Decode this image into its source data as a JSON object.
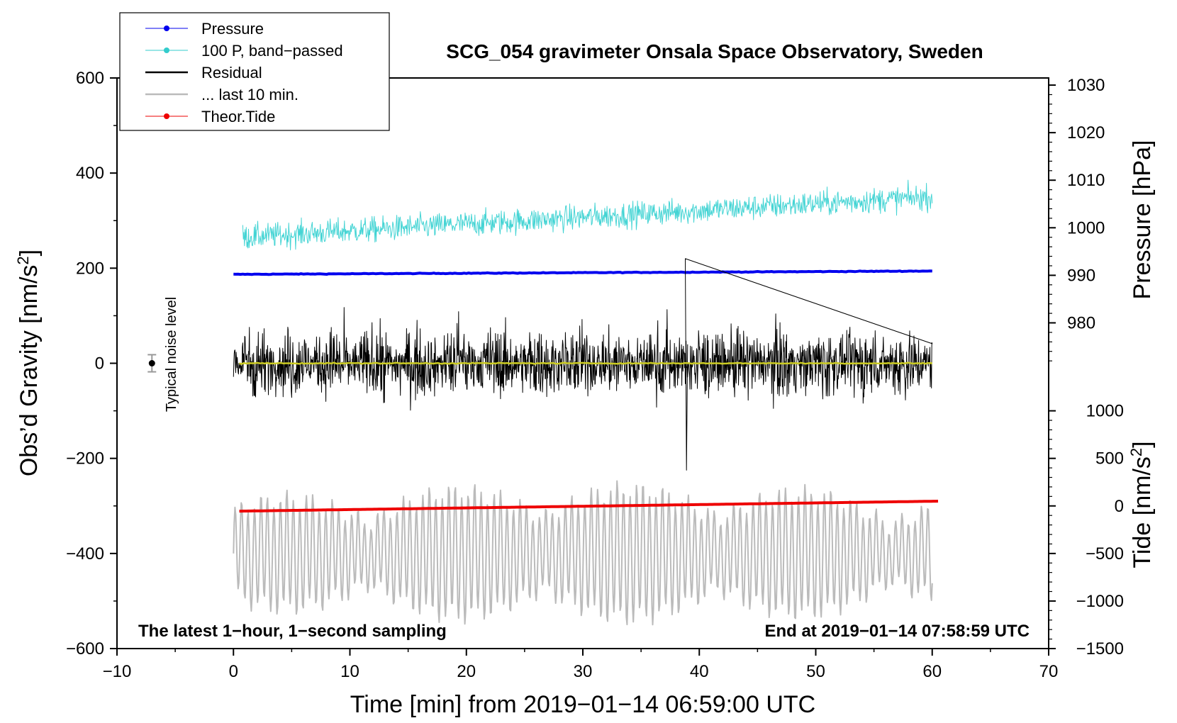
{
  "chart_data": {
    "type": "line",
    "title": "SCG_054 gravimeter Onsala Space Observatory, Sweden",
    "xlabel": "Time [min] from 2019−01−14 06:59:00 UTC",
    "ylabel_left": "Obs’d Gravity [nm/s",
    "ylabel_right_top": "Pressure [hPa]",
    "ylabel_right_bottom": "Tide [nm/s",
    "unit_superscript": "2",
    "unit_close": "]",
    "xlim": [
      -10,
      70
    ],
    "ylim_left": [
      -600,
      600
    ],
    "pressure_axis": {
      "ref_hPa": 990,
      "ref_gravity": 185,
      "scale_per_hPa": 10
    },
    "tide_axis": {
      "ref_tide": 0,
      "ref_gravity": -300,
      "scale_per_unit": 0.2
    },
    "x_ticks": [
      -10,
      0,
      10,
      20,
      30,
      40,
      50,
      60,
      70
    ],
    "x_tick_labels": [
      "−10",
      "0",
      "10",
      "20",
      "30",
      "40",
      "50",
      "60",
      "70"
    ],
    "y_left_ticks": [
      -600,
      -400,
      -200,
      0,
      200,
      400,
      600
    ],
    "y_left_tick_labels": [
      "−600",
      "−400",
      "−200",
      "0",
      "200",
      "400",
      "600"
    ],
    "pressure_ticks": [
      980,
      990,
      1000,
      1010,
      1020,
      1030
    ],
    "pressure_tick_labels": [
      "980",
      "990",
      "1000",
      "1010",
      "1020",
      "1030"
    ],
    "tide_ticks": [
      -1500,
      -1000,
      -500,
      0,
      500,
      1000
    ],
    "tide_tick_labels": [
      "−1500",
      "−1000",
      "−500",
      "0",
      "500",
      "1000"
    ],
    "legend": [
      {
        "label": "Pressure",
        "color": "#0000ee",
        "marker": true
      },
      {
        "label": "100 P, band−passed",
        "color": "#33cccc",
        "marker": true
      },
      {
        "label": "Residual",
        "color": "#000000",
        "marker": false
      },
      {
        "label": "... last 10 min.",
        "color": "#bbbbbb",
        "marker": false
      },
      {
        "label": "Theor.Tide",
        "color": "#ee0000",
        "marker": true
      }
    ],
    "annotations": {
      "bottom_left": "The latest 1−hour, 1−second sampling",
      "bottom_right": "End at 2019−01−14 07:58:59 UTC",
      "noise_label": "Typical noise level"
    },
    "noise_level": {
      "x": -7,
      "y": 0,
      "err": 18
    },
    "series": [
      {
        "name": "Pressure",
        "color": "#0000ee",
        "width": 4,
        "x_range": [
          0,
          60
        ],
        "y_start": 187,
        "y_end": 194,
        "noise": 1.2
      },
      {
        "name": "100 P, band-passed",
        "color": "#44d4d4",
        "width": 1,
        "x_range": [
          0.8,
          60
        ],
        "y_start": 265,
        "y_end": 350,
        "noise": 45
      },
      {
        "name": "Residual",
        "color": "#000000",
        "width": 1,
        "x_range": [
          0,
          60
        ],
        "y_start": 0,
        "y_end": 0,
        "noise": 110
      },
      {
        "name": "Mean residual",
        "color": "#cccc22",
        "width": 2.5,
        "x_range": [
          0.5,
          60
        ],
        "y_start": 0,
        "y_end": 0,
        "noise": 2
      },
      {
        "name": "... last 10 min.",
        "color": "#bbbbbb",
        "width": 2,
        "x_range": [
          0,
          60
        ],
        "y_center": -400,
        "amplitude": 110
      },
      {
        "name": "Theor.Tide",
        "color": "#ee0000",
        "width": 4,
        "x_range": [
          0.5,
          60.5
        ],
        "y_start": -311,
        "y_end": -290,
        "noise": 0
      }
    ]
  }
}
